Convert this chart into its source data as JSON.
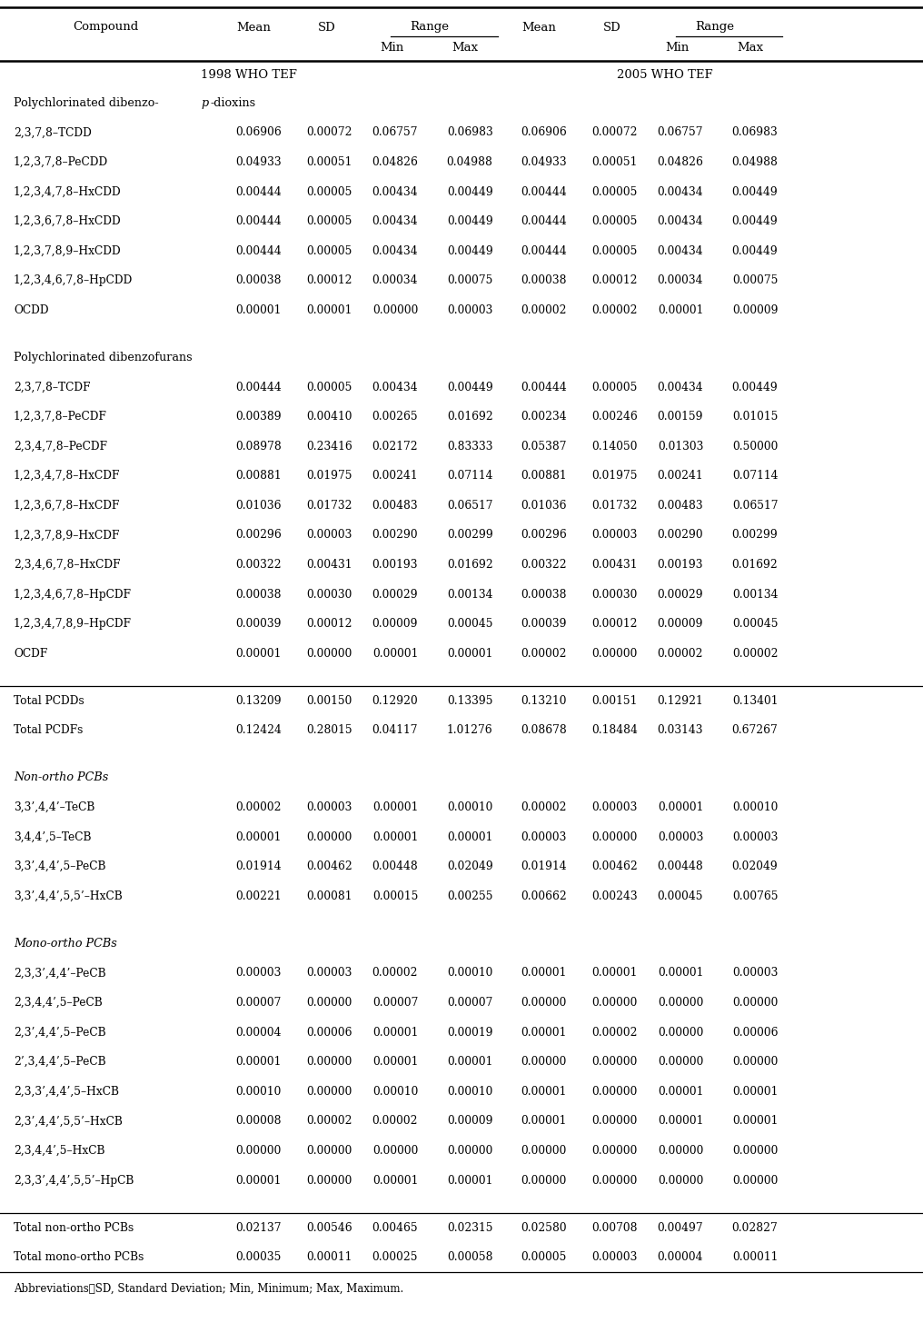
{
  "tef1998_label": "1998 WHO TEF",
  "tef2005_label": "2005 WHO TEF",
  "footnote": "Abbreviations：SD, Standard Deviation; Min, Minimum; Max, Maximum.",
  "sections": [
    {
      "type": "section_header",
      "label": "Polychlorinated dibenzo-p-dioxins",
      "has_italic_p": true,
      "italic": false
    },
    {
      "type": "data",
      "compound": "2,3,7,8–TCDD",
      "tef1998": [
        "0.06906",
        "0.00072",
        "0.06757",
        "0.06983"
      ],
      "tef2005": [
        "0.06906",
        "0.00072",
        "0.06757",
        "0.06983"
      ]
    },
    {
      "type": "data",
      "compound": "1,2,3,7,8–PeCDD",
      "tef1998": [
        "0.04933",
        "0.00051",
        "0.04826",
        "0.04988"
      ],
      "tef2005": [
        "0.04933",
        "0.00051",
        "0.04826",
        "0.04988"
      ]
    },
    {
      "type": "data",
      "compound": "1,2,3,4,7,8–HxCDD",
      "tef1998": [
        "0.00444",
        "0.00005",
        "0.00434",
        "0.00449"
      ],
      "tef2005": [
        "0.00444",
        "0.00005",
        "0.00434",
        "0.00449"
      ]
    },
    {
      "type": "data",
      "compound": "1,2,3,6,7,8–HxCDD",
      "tef1998": [
        "0.00444",
        "0.00005",
        "0.00434",
        "0.00449"
      ],
      "tef2005": [
        "0.00444",
        "0.00005",
        "0.00434",
        "0.00449"
      ]
    },
    {
      "type": "data",
      "compound": "1,2,3,7,8,9–HxCDD",
      "tef1998": [
        "0.00444",
        "0.00005",
        "0.00434",
        "0.00449"
      ],
      "tef2005": [
        "0.00444",
        "0.00005",
        "0.00434",
        "0.00449"
      ]
    },
    {
      "type": "data",
      "compound": "1,2,3,4,6,7,8–HpCDD",
      "tef1998": [
        "0.00038",
        "0.00012",
        "0.00034",
        "0.00075"
      ],
      "tef2005": [
        "0.00038",
        "0.00012",
        "0.00034",
        "0.00075"
      ]
    },
    {
      "type": "data",
      "compound": "OCDD",
      "tef1998": [
        "0.00001",
        "0.00001",
        "0.00000",
        "0.00003"
      ],
      "tef2005": [
        "0.00002",
        "0.00002",
        "0.00001",
        "0.00009"
      ]
    },
    {
      "type": "blank"
    },
    {
      "type": "section_header",
      "label": "Polychlorinated dibenzofurans",
      "has_italic_p": false,
      "italic": false
    },
    {
      "type": "data",
      "compound": "2,3,7,8–TCDF",
      "tef1998": [
        "0.00444",
        "0.00005",
        "0.00434",
        "0.00449"
      ],
      "tef2005": [
        "0.00444",
        "0.00005",
        "0.00434",
        "0.00449"
      ]
    },
    {
      "type": "data",
      "compound": "1,2,3,7,8–PeCDF",
      "tef1998": [
        "0.00389",
        "0.00410",
        "0.00265",
        "0.01692"
      ],
      "tef2005": [
        "0.00234",
        "0.00246",
        "0.00159",
        "0.01015"
      ]
    },
    {
      "type": "data",
      "compound": "2,3,4,7,8–PeCDF",
      "tef1998": [
        "0.08978",
        "0.23416",
        "0.02172",
        "0.83333"
      ],
      "tef2005": [
        "0.05387",
        "0.14050",
        "0.01303",
        "0.50000"
      ]
    },
    {
      "type": "data",
      "compound": "1,2,3,4,7,8–HxCDF",
      "tef1998": [
        "0.00881",
        "0.01975",
        "0.00241",
        "0.07114"
      ],
      "tef2005": [
        "0.00881",
        "0.01975",
        "0.00241",
        "0.07114"
      ]
    },
    {
      "type": "data",
      "compound": "1,2,3,6,7,8–HxCDF",
      "tef1998": [
        "0.01036",
        "0.01732",
        "0.00483",
        "0.06517"
      ],
      "tef2005": [
        "0.01036",
        "0.01732",
        "0.00483",
        "0.06517"
      ]
    },
    {
      "type": "data",
      "compound": "1,2,3,7,8,9–HxCDF",
      "tef1998": [
        "0.00296",
        "0.00003",
        "0.00290",
        "0.00299"
      ],
      "tef2005": [
        "0.00296",
        "0.00003",
        "0.00290",
        "0.00299"
      ]
    },
    {
      "type": "data",
      "compound": "2,3,4,6,7,8–HxCDF",
      "tef1998": [
        "0.00322",
        "0.00431",
        "0.00193",
        "0.01692"
      ],
      "tef2005": [
        "0.00322",
        "0.00431",
        "0.00193",
        "0.01692"
      ]
    },
    {
      "type": "data",
      "compound": "1,2,3,4,6,7,8–HpCDF",
      "tef1998": [
        "0.00038",
        "0.00030",
        "0.00029",
        "0.00134"
      ],
      "tef2005": [
        "0.00038",
        "0.00030",
        "0.00029",
        "0.00134"
      ]
    },
    {
      "type": "data",
      "compound": "1,2,3,4,7,8,9–HpCDF",
      "tef1998": [
        "0.00039",
        "0.00012",
        "0.00009",
        "0.00045"
      ],
      "tef2005": [
        "0.00039",
        "0.00012",
        "0.00009",
        "0.00045"
      ]
    },
    {
      "type": "data",
      "compound": "OCDF",
      "tef1998": [
        "0.00001",
        "0.00000",
        "0.00001",
        "0.00001"
      ],
      "tef2005": [
        "0.00002",
        "0.00000",
        "0.00002",
        "0.00002"
      ]
    },
    {
      "type": "blank"
    },
    {
      "type": "total",
      "compound": "Total PCDDs",
      "tef1998": [
        "0.13209",
        "0.00150",
        "0.12920",
        "0.13395"
      ],
      "tef2005": [
        "0.13210",
        "0.00151",
        "0.12921",
        "0.13401"
      ]
    },
    {
      "type": "total",
      "compound": "Total PCDFs",
      "tef1998": [
        "0.12424",
        "0.28015",
        "0.04117",
        "1.01276"
      ],
      "tef2005": [
        "0.08678",
        "0.18484",
        "0.03143",
        "0.67267"
      ]
    },
    {
      "type": "blank"
    },
    {
      "type": "section_header",
      "label": "Non-ortho PCBs",
      "has_italic_p": false,
      "italic": true
    },
    {
      "type": "data",
      "compound": "3,3’,4,4’–TeCB",
      "tef1998": [
        "0.00002",
        "0.00003",
        "0.00001",
        "0.00010"
      ],
      "tef2005": [
        "0.00002",
        "0.00003",
        "0.00001",
        "0.00010"
      ]
    },
    {
      "type": "data",
      "compound": "3,4,4’,5–TeCB",
      "tef1998": [
        "0.00001",
        "0.00000",
        "0.00001",
        "0.00001"
      ],
      "tef2005": [
        "0.00003",
        "0.00000",
        "0.00003",
        "0.00003"
      ]
    },
    {
      "type": "data",
      "compound": "3,3’,4,4’,5–PeCB",
      "tef1998": [
        "0.01914",
        "0.00462",
        "0.00448",
        "0.02049"
      ],
      "tef2005": [
        "0.01914",
        "0.00462",
        "0.00448",
        "0.02049"
      ]
    },
    {
      "type": "data",
      "compound": "3,3’,4,4’,5,5’–HxCB",
      "tef1998": [
        "0.00221",
        "0.00081",
        "0.00015",
        "0.00255"
      ],
      "tef2005": [
        "0.00662",
        "0.00243",
        "0.00045",
        "0.00765"
      ]
    },
    {
      "type": "blank"
    },
    {
      "type": "section_header",
      "label": "Mono-ortho PCBs",
      "has_italic_p": false,
      "italic": true
    },
    {
      "type": "data",
      "compound": "2,3,3’,4,4’–PeCB",
      "tef1998": [
        "0.00003",
        "0.00003",
        "0.00002",
        "0.00010"
      ],
      "tef2005": [
        "0.00001",
        "0.00001",
        "0.00001",
        "0.00003"
      ]
    },
    {
      "type": "data",
      "compound": "2,3,4,4’,5–PeCB",
      "tef1998": [
        "0.00007",
        "0.00000",
        "0.00007",
        "0.00007"
      ],
      "tef2005": [
        "0.00000",
        "0.00000",
        "0.00000",
        "0.00000"
      ]
    },
    {
      "type": "data",
      "compound": "2,3’,4,4’,5–PeCB",
      "tef1998": [
        "0.00004",
        "0.00006",
        "0.00001",
        "0.00019"
      ],
      "tef2005": [
        "0.00001",
        "0.00002",
        "0.00000",
        "0.00006"
      ]
    },
    {
      "type": "data",
      "compound": "2’,3,4,4’,5–PeCB",
      "tef1998": [
        "0.00001",
        "0.00000",
        "0.00001",
        "0.00001"
      ],
      "tef2005": [
        "0.00000",
        "0.00000",
        "0.00000",
        "0.00000"
      ]
    },
    {
      "type": "data",
      "compound": "2,3,3’,4,4’,5–HxCB",
      "tef1998": [
        "0.00010",
        "0.00000",
        "0.00010",
        "0.00010"
      ],
      "tef2005": [
        "0.00001",
        "0.00000",
        "0.00001",
        "0.00001"
      ]
    },
    {
      "type": "data",
      "compound": "2,3’,4,4’,5,5’–HxCB",
      "tef1998": [
        "0.00008",
        "0.00002",
        "0.00002",
        "0.00009"
      ],
      "tef2005": [
        "0.00001",
        "0.00000",
        "0.00001",
        "0.00001"
      ]
    },
    {
      "type": "data",
      "compound": "2,3,4,4’,5–HxCB",
      "tef1998": [
        "0.00000",
        "0.00000",
        "0.00000",
        "0.00000"
      ],
      "tef2005": [
        "0.00000",
        "0.00000",
        "0.00000",
        "0.00000"
      ]
    },
    {
      "type": "data",
      "compound": "2,3,3’,4,4’,5,5’–HpCB",
      "tef1998": [
        "0.00001",
        "0.00000",
        "0.00001",
        "0.00001"
      ],
      "tef2005": [
        "0.00000",
        "0.00000",
        "0.00000",
        "0.00000"
      ]
    },
    {
      "type": "blank"
    },
    {
      "type": "total",
      "compound": "Total non-ortho PCBs",
      "tef1998": [
        "0.02137",
        "0.00546",
        "0.00465",
        "0.02315"
      ],
      "tef2005": [
        "0.02580",
        "0.00708",
        "0.00497",
        "0.02827"
      ]
    },
    {
      "type": "total",
      "compound": "Total mono-ortho PCBs",
      "tef1998": [
        "0.00035",
        "0.00011",
        "0.00025",
        "0.00058"
      ],
      "tef2005": [
        "0.00005",
        "0.00003",
        "0.00004",
        "0.00011"
      ]
    }
  ]
}
